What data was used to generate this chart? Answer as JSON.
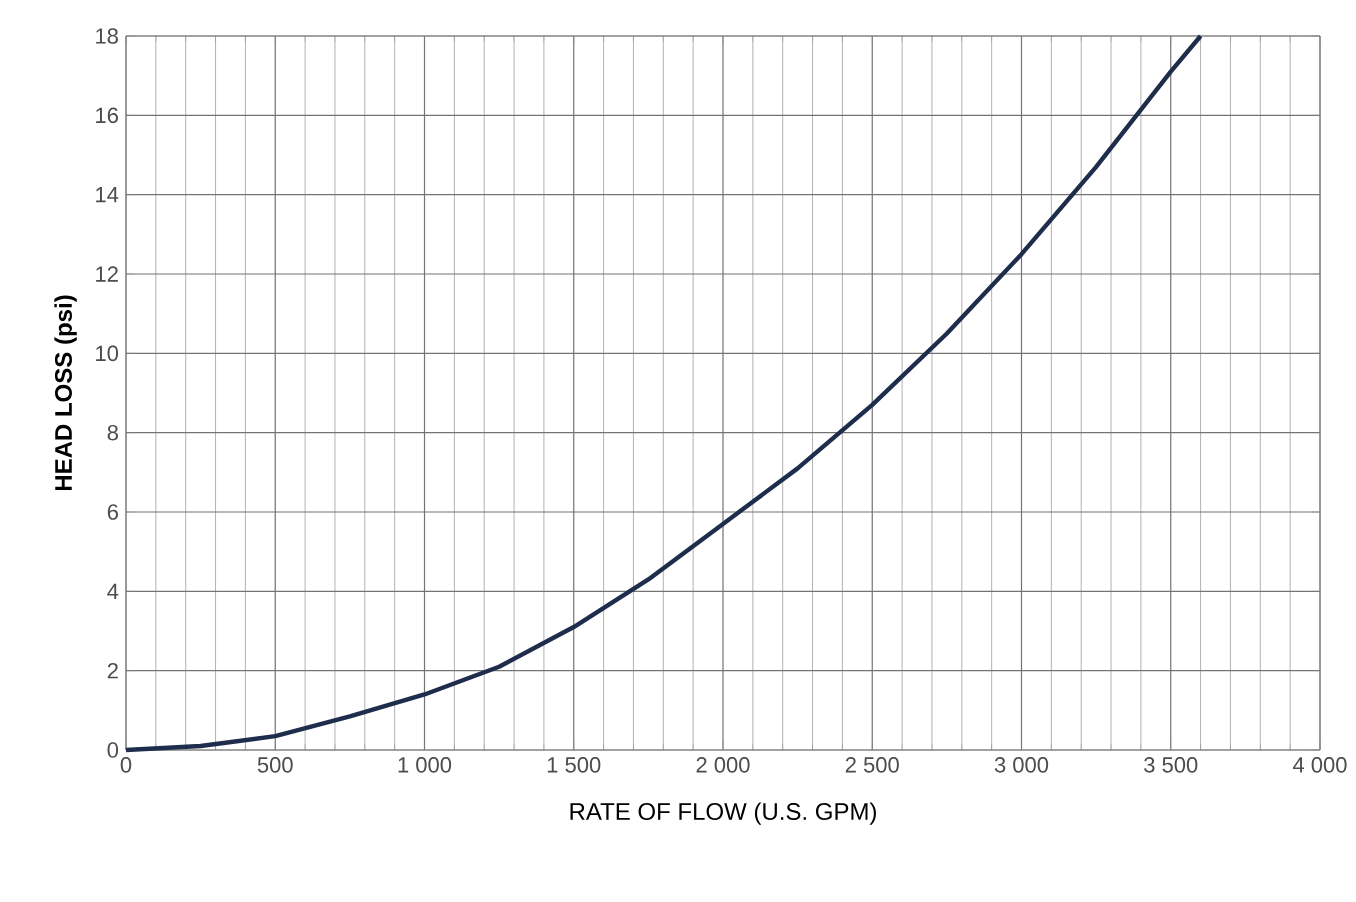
{
  "chart_data": {
    "type": "line",
    "xlabel": "RATE OF FLOW (U.S. GPM)",
    "ylabel": "HEAD LOSS (psi)",
    "x": [
      0,
      250,
      500,
      750,
      1000,
      1250,
      1500,
      1750,
      2000,
      2250,
      2500,
      2750,
      3000,
      3250,
      3500,
      3600
    ],
    "series": [
      {
        "color": "#1f2d4d",
        "values": [
          0,
          0.1,
          0.35,
          0.85,
          1.4,
          2.1,
          3.1,
          4.3,
          5.7,
          7.1,
          8.7,
          10.5,
          12.5,
          14.7,
          17.1,
          18
        ]
      }
    ],
    "xlim": [
      0,
      4000
    ],
    "ylim": [
      0,
      18
    ],
    "xticks": [
      0,
      500,
      {
        "value": 1000,
        "label": "1 000"
      },
      {
        "value": 1500,
        "label": "1 500"
      },
      {
        "value": 2000,
        "label": "2 000"
      },
      {
        "value": 2500,
        "label": "2 500"
      },
      {
        "value": 3000,
        "label": "3 000"
      },
      {
        "value": 3500,
        "label": "3 500"
      },
      {
        "value": 4000,
        "label": "4 000"
      }
    ],
    "yticks": [
      0,
      2,
      4,
      6,
      8,
      10,
      12,
      14,
      16,
      18
    ],
    "grid": true,
    "marker": "none",
    "line_style": "solid"
  }
}
